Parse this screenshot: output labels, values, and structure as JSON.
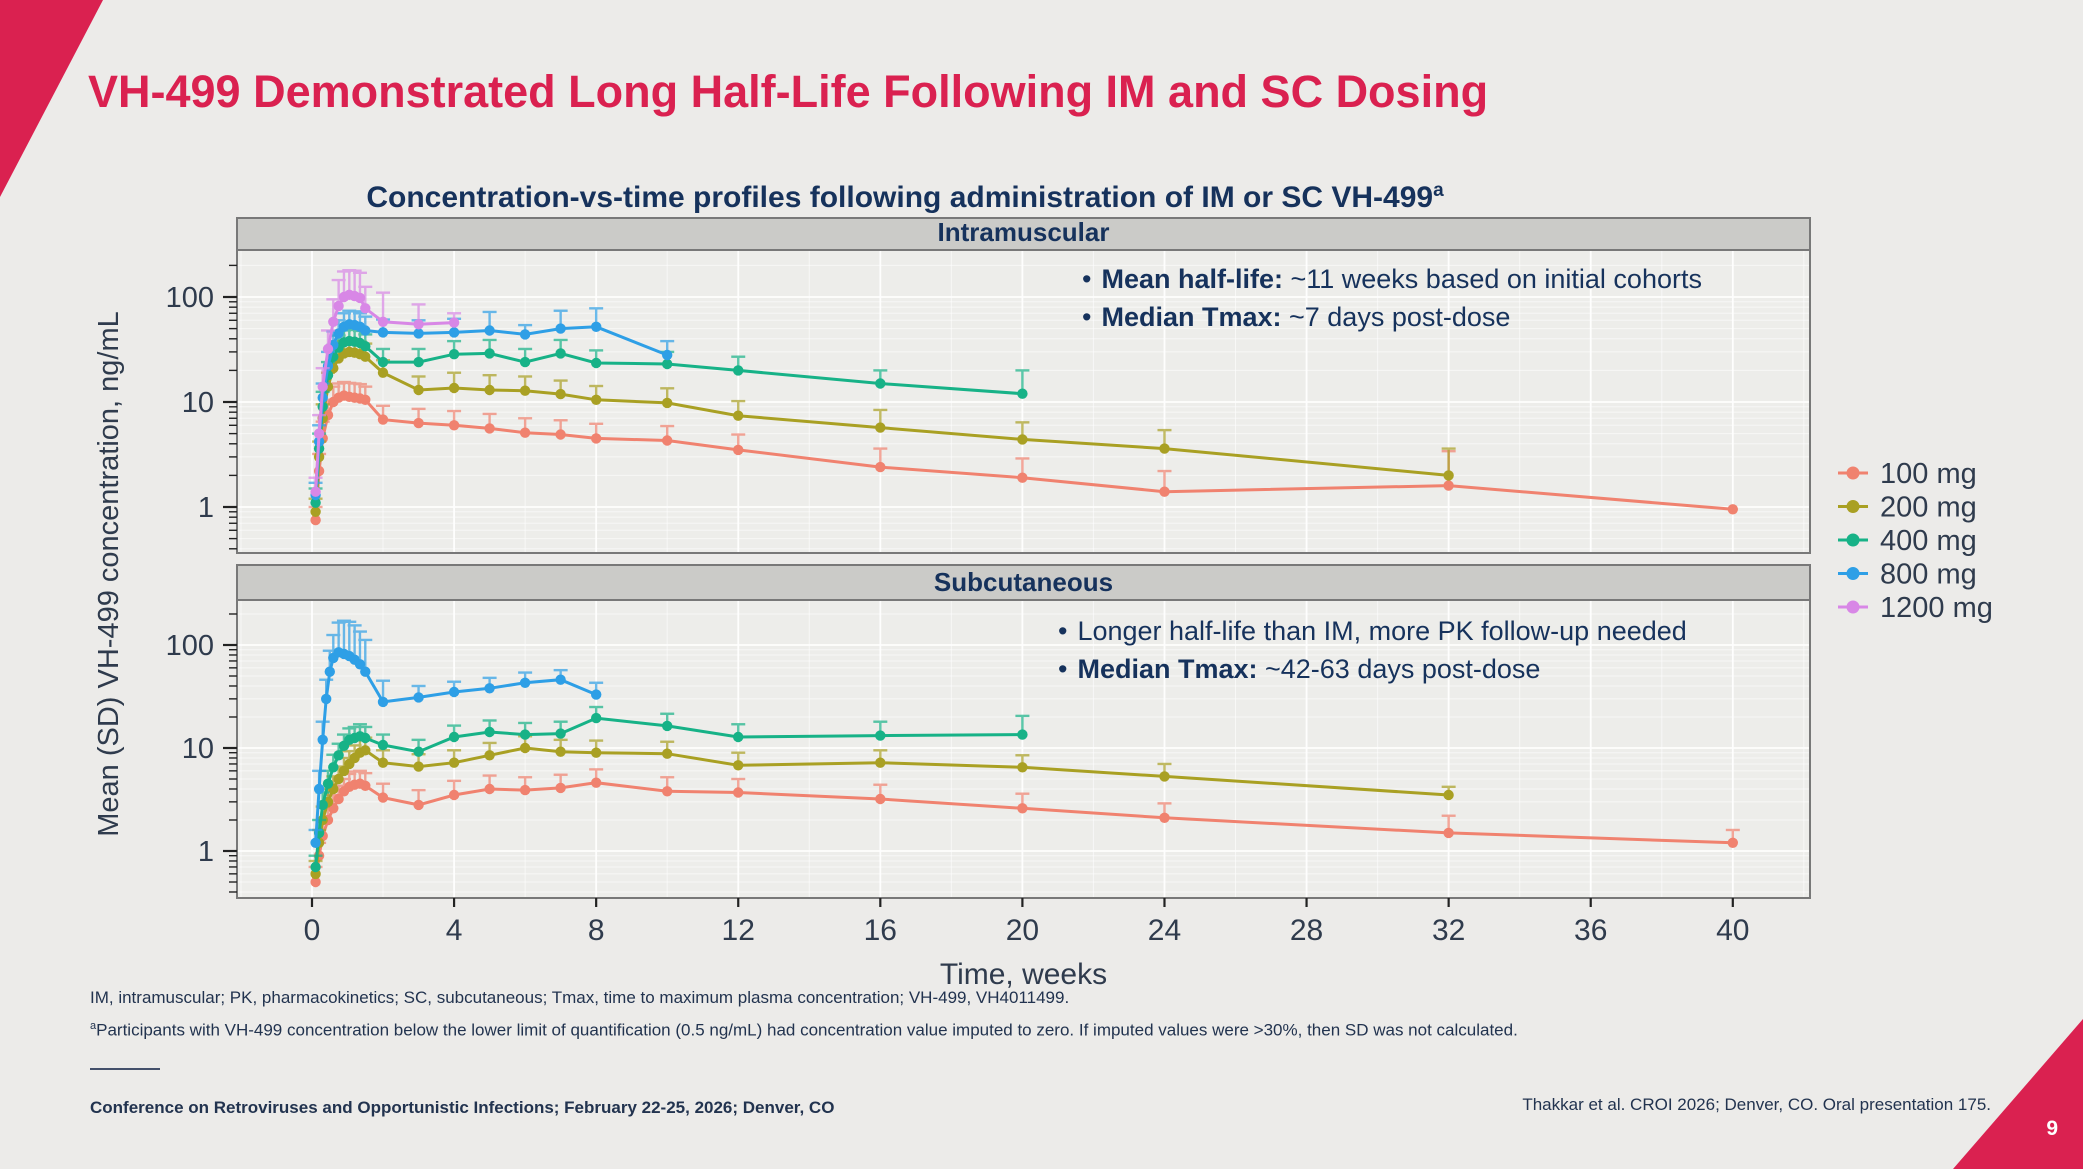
{
  "slide": {
    "title": "VH-499 Demonstrated Long Half-Life Following IM and SC Dosing",
    "subtitle": "Concentration-vs-time profiles following administration of IM or SC VH-499",
    "subtitle_sup": "a",
    "page_number": "9",
    "footnote_abbrev": "IM, intramuscular; PK, pharmacokinetics; SC, subcutaneous; Tmax, time to maximum plasma concentration; VH-499, VH4011499.",
    "footnote_a_marker": "a",
    "footnote_a": "Participants with VH-499 concentration below the lower limit of quantification (0.5 ng/mL) had concentration value imputed to zero. If imputed values were >30%, then SD was not calculated.",
    "footer_left": "Conference on Retroviruses and Opportunistic Infections; February 22-25, 2026; Denver, CO",
    "footer_right": "Thakkar et al. CROI 2026; Denver, CO. Oral presentation 175."
  },
  "colors": {
    "accent": "#DA2150",
    "heading_text": "#16325C",
    "body_text": "#22334F"
  },
  "annotations": {
    "im": [
      {
        "bullet": "•",
        "bold": "Mean half-life:",
        "rest": " ~11 weeks based on initial cohorts"
      },
      {
        "bullet": "•",
        "bold": "Median Tmax:",
        "rest": " ~7 days post-dose"
      }
    ],
    "sc": [
      {
        "bullet": "•",
        "bold": "",
        "rest": "Longer half-life than IM, more PK follow-up needed"
      },
      {
        "bullet": "•",
        "bold": "Median Tmax:",
        "rest": " ~42-63 days post-dose"
      }
    ]
  },
  "chart_data": {
    "type": "line",
    "xlabel": "Time, weeks",
    "ylabel": "Mean (SD) VH-499 concentration, ng/mL",
    "x_ticks": [
      0,
      4,
      8,
      12,
      16,
      20,
      24,
      28,
      32,
      36,
      40
    ],
    "xlim": [
      -2.1,
      42.2
    ],
    "y_scale": "log10",
    "y_ticks": [
      1,
      10,
      100
    ],
    "ylim": [
      0.36,
      275
    ],
    "grid": true,
    "legend_position": "right",
    "error_bars": "upper SD only",
    "style": {
      "panel_bg": "#EDEDEA",
      "grid_color": "#FFFFFF",
      "strip_bg": "#CBCBC8",
      "strip_text": "#16325C",
      "text": "#2F3B4D",
      "border": "#787878"
    },
    "legend": [
      {
        "label": "100 mg",
        "color": "#F0826F"
      },
      {
        "label": "200 mg",
        "color": "#A9A023"
      },
      {
        "label": "400 mg",
        "color": "#17B287"
      },
      {
        "label": "800 mg",
        "color": "#2E9FE6"
      },
      {
        "label": "1200 mg",
        "color": "#D887E6"
      }
    ],
    "facets": [
      {
        "title": "Intramuscular",
        "series": [
          {
            "name": "100 mg",
            "x": [
              0.1,
              0.2,
              0.3,
              0.45,
              0.6,
              0.75,
              0.9,
              1.05,
              1.2,
              1.35,
              1.5,
              2,
              3,
              4,
              5,
              6,
              7,
              8,
              10,
              12,
              16,
              20,
              24,
              32,
              40
            ],
            "y": [
              0.75,
              2.2,
              4.5,
              7.5,
              10,
              11,
              11.5,
              11.2,
              11,
              10.8,
              10.5,
              6.8,
              6.3,
              6.0,
              5.6,
              5.1,
              4.9,
              4.5,
              4.3,
              3.5,
              2.4,
              1.9,
              1.4,
              1.6,
              0.95
            ],
            "upper": [
              1.0,
              3.2,
              6.5,
              10.5,
              14,
              15,
              15.5,
              15.2,
              15,
              14.8,
              14,
              9.2,
              8.6,
              8.2,
              7.7,
              7.0,
              6.7,
              6.2,
              5.9,
              4.9,
              3.6,
              2.9,
              2.2,
              3.4,
              0.95
            ]
          },
          {
            "name": "200 mg",
            "x": [
              0.1,
              0.2,
              0.3,
              0.45,
              0.6,
              0.75,
              0.9,
              1.05,
              1.2,
              1.35,
              1.5,
              2,
              3,
              4,
              5,
              6,
              7,
              8,
              10,
              12,
              16,
              20,
              24,
              32
            ],
            "y": [
              0.9,
              3,
              7,
              14,
              21,
              26,
              29,
              30,
              29.5,
              28.5,
              27,
              19,
              13,
              13.6,
              13,
              12.8,
              11.9,
              10.5,
              9.8,
              7.4,
              5.7,
              4.4,
              3.6,
              2.0
            ],
            "upper": [
              1.2,
              4.2,
              9.5,
              19,
              28,
              34,
              38,
              39,
              38.5,
              37.5,
              36,
              25,
              17.5,
              19,
              18,
              17.5,
              16,
              14.2,
              13.5,
              10.2,
              8.4,
              6.4,
              5.4,
              3.6
            ]
          },
          {
            "name": "400 mg",
            "x": [
              0.1,
              0.2,
              0.3,
              0.45,
              0.6,
              0.75,
              0.9,
              1.05,
              1.2,
              1.35,
              1.5,
              2,
              3,
              4,
              5,
              6,
              7,
              8,
              10,
              12,
              16,
              20
            ],
            "y": [
              1.1,
              3.6,
              9,
              18,
              27,
              33,
              37,
              38,
              37.5,
              36.5,
              34,
              24,
              24,
              28.5,
              29,
              24,
              29,
              23.5,
              23,
              20,
              15,
              12
            ],
            "upper": [
              1.5,
              5,
              12.5,
              24,
              35,
              43,
              48,
              49,
              48.5,
              47.5,
              44,
              32,
              32,
              38,
              39,
              32,
              39,
              31,
              30,
              27,
              20,
              20
            ]
          },
          {
            "name": "800 mg",
            "x": [
              0.1,
              0.2,
              0.3,
              0.45,
              0.6,
              0.75,
              0.9,
              1.05,
              1.2,
              1.35,
              1.5,
              2,
              3,
              4,
              5,
              6,
              7,
              8,
              10
            ],
            "y": [
              1.3,
              4.2,
              11,
              22,
              35,
              45,
              52,
              55,
              54,
              52,
              48,
              46,
              45,
              46,
              48,
              44,
              50,
              52,
              28
            ],
            "upper": [
              1.7,
              6,
              15,
              30,
              47,
              60,
              70,
              74,
              73,
              70,
              65,
              61,
              60,
              62,
              72,
              54,
              74,
              78,
              38
            ]
          },
          {
            "name": "1200 mg",
            "x": [
              0.1,
              0.2,
              0.3,
              0.45,
              0.6,
              0.75,
              0.9,
              1.05,
              1.2,
              1.35,
              1.5,
              2,
              3,
              4
            ],
            "y": [
              1.4,
              5,
              14,
              32,
              58,
              82,
              100,
              105,
              102,
              98,
              78,
              58,
              55,
              57
            ],
            "upper": [
              1.9,
              7.5,
              21,
              48,
              95,
              145,
              175,
              180,
              178,
              170,
              125,
              110,
              85,
              70
            ]
          }
        ]
      },
      {
        "title": "Subcutaneous",
        "series": [
          {
            "name": "100 mg",
            "x": [
              0.1,
              0.2,
              0.3,
              0.45,
              0.6,
              0.75,
              0.9,
              1.05,
              1.2,
              1.35,
              1.5,
              2,
              3,
              4,
              5,
              6,
              7,
              8,
              10,
              12,
              16,
              20,
              24,
              32,
              40
            ],
            "y": [
              0.5,
              0.9,
              1.4,
              2.0,
              2.6,
              3.2,
              3.8,
              4.2,
              4.4,
              4.5,
              4.3,
              3.3,
              2.8,
              3.5,
              4.0,
              3.9,
              4.1,
              4.6,
              3.8,
              3.7,
              3.2,
              2.6,
              2.1,
              1.5,
              1.2
            ],
            "upper": [
              0.7,
              1.2,
              1.9,
              2.7,
              3.5,
              4.3,
              5.0,
              5.6,
              5.9,
              6.0,
              5.7,
              4.5,
              3.9,
              4.8,
              5.4,
              5.2,
              5.5,
              6.2,
              5.2,
              5.0,
              4.4,
              3.6,
              2.9,
              2.2,
              1.6
            ]
          },
          {
            "name": "200 mg",
            "x": [
              0.1,
              0.2,
              0.3,
              0.45,
              0.6,
              0.75,
              0.9,
              1.05,
              1.2,
              1.35,
              1.5,
              2,
              3,
              4,
              5,
              6,
              7,
              8,
              10,
              12,
              16,
              20,
              24,
              32
            ],
            "y": [
              0.6,
              1.2,
              2.0,
              3.0,
              4.0,
              5.0,
              6.0,
              7.0,
              8.0,
              9.0,
              9.5,
              7.2,
              6.6,
              7.2,
              8.5,
              10,
              9.2,
              9.0,
              8.8,
              6.8,
              7.2,
              6.5,
              5.3,
              3.5
            ],
            "upper": [
              0.8,
              1.6,
              2.7,
              4.0,
              5.3,
              6.6,
              8.0,
              9.3,
              10.6,
              12,
              12.6,
              9.5,
              8.7,
              9.5,
              11.2,
              13,
              12,
              11.8,
              11.5,
              9.0,
              9.5,
              8.5,
              7.0,
              4.2
            ]
          },
          {
            "name": "400 mg",
            "x": [
              0.1,
              0.2,
              0.3,
              0.45,
              0.6,
              0.75,
              0.9,
              1.05,
              1.2,
              1.35,
              1.5,
              2,
              3,
              4,
              5,
              6,
              7,
              8,
              10,
              12,
              16,
              20
            ],
            "y": [
              0.7,
              1.5,
              2.8,
              4.5,
              6.5,
              8.5,
              10.5,
              12,
              12.5,
              13,
              12.5,
              10.7,
              9.2,
              12.8,
              14.3,
              13.5,
              13.8,
              19.5,
              16.4,
              12.8,
              13.2,
              13.5
            ],
            "upper": [
              0.9,
              2.0,
              3.7,
              6.0,
              8.6,
              11,
              13.5,
              15.5,
              16,
              17,
              16,
              13.5,
              12,
              16.5,
              18.5,
              17.5,
              18,
              25,
              21.5,
              17,
              18,
              20.5
            ]
          },
          {
            "name": "800 mg",
            "x": [
              0.1,
              0.2,
              0.3,
              0.4,
              0.5,
              0.6,
              0.75,
              0.9,
              1.05,
              1.2,
              1.35,
              1.5,
              2,
              3,
              4,
              5,
              6,
              7,
              8
            ],
            "y": [
              1.2,
              4,
              12,
              30,
              55,
              75,
              85,
              82,
              78,
              72,
              65,
              55,
              28,
              31,
              35,
              38,
              43,
              46,
              33
            ],
            "upper": [
              1.6,
              6,
              18,
              46,
              88,
              125,
              165,
              172,
              168,
              155,
              135,
              112,
              45,
              40,
              44,
              48,
              54,
              57,
              43
            ]
          }
        ]
      }
    ]
  }
}
